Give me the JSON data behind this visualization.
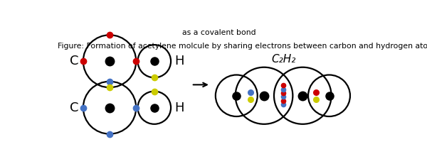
{
  "figure_caption_line1": "Figure: Formation of acetylene molcule by sharing electrons between carbon and hydrogen atoms",
  "figure_caption_line2": "as a covalent bond",
  "formula_product": "C₂H₂",
  "bg_color": "#ffffff",
  "circle_color": "#000000",
  "nucleus_color": "#000000",
  "electron_blue": "#4472C4",
  "electron_red": "#CC0000",
  "electron_yellow": "#CCCC00",
  "lw": 1.6,
  "left_C_r": 0.42,
  "left_H_r": 0.28,
  "right_C_r": 0.4,
  "right_H_r": 0.3
}
